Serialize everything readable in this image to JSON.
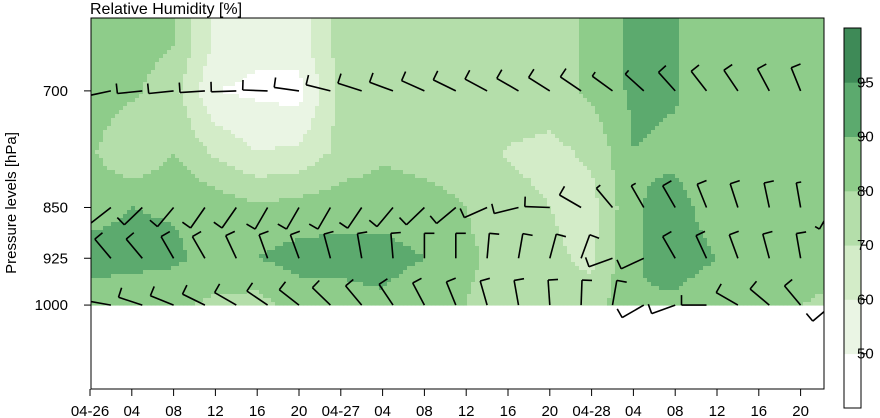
{
  "chart_data": {
    "type": "heatmap",
    "title": "Relative Humidity [%]",
    "xlabel": "",
    "ylabel": "Pressure levels [hPa]",
    "x_tick_labels": [
      "04-26",
      "04",
      "08",
      "12",
      "16",
      "20",
      "04-27",
      "04",
      "08",
      "12",
      "16",
      "20",
      "04-28",
      "04",
      "08",
      "12",
      "16",
      "20"
    ],
    "y_levels": [
      700,
      850,
      925,
      1000
    ],
    "y_tick_labels": [
      "700",
      "850",
      "925",
      "1000"
    ],
    "y_scale": "log",
    "ylim": [
      1150,
      620
    ],
    "colorbar": {
      "levels": [
        40,
        50,
        60,
        70,
        80,
        90,
        95,
        100
      ],
      "tick_labels": [
        "50",
        "60",
        "70",
        "80",
        "90",
        "95"
      ],
      "colors": [
        "#ffffff",
        "#eaf5e4",
        "#d3ecc8",
        "#b4deaa",
        "#8ecc8a",
        "#5caa6e",
        "#3e8a57"
      ]
    },
    "time_hours_from_first_tick": [
      0,
      4,
      8,
      12,
      16,
      20,
      24,
      28,
      32,
      36,
      40,
      44,
      48,
      52,
      56,
      60,
      64,
      68
    ],
    "rh_grid": {
      "levels": [
        650,
        700,
        775,
        850,
        925,
        1000
      ],
      "values": [
        [
          82,
          84,
          80,
          58,
          52,
          55,
          74,
          76,
          78,
          79,
          80,
          78,
          81,
          93,
          91,
          80,
          80,
          82,
          84
        ],
        [
          86,
          82,
          74,
          50,
          48,
          46,
          74,
          79,
          80,
          80,
          78,
          76,
          82,
          92,
          91,
          84,
          82,
          83,
          84
        ],
        [
          82,
          70,
          80,
          68,
          60,
          62,
          73,
          78,
          76,
          75,
          69,
          67,
          72,
          90,
          88,
          83,
          81,
          82,
          80
        ],
        [
          87,
          90,
          89,
          86,
          82,
          84,
          86,
          86,
          84,
          80,
          74,
          70,
          66,
          89,
          93,
          86,
          87,
          83,
          80
        ],
        [
          93,
          93,
          92,
          86,
          90,
          94,
          94,
          94,
          90,
          82,
          76,
          72,
          68,
          89,
          94,
          90,
          88,
          84,
          82
        ],
        [
          86,
          84,
          82,
          78,
          76,
          84,
          85,
          88,
          82,
          80,
          74,
          72,
          74,
          90,
          88,
          84,
          82,
          80,
          78
        ]
      ]
    },
    "wind_barbs": {
      "levels": [
        700,
        850,
        925,
        1000
      ],
      "time_hours": [
        0,
        2,
        5,
        8,
        11,
        14,
        17,
        20,
        23,
        26,
        29,
        32,
        35,
        38,
        41,
        44,
        47,
        50,
        53,
        56,
        59,
        62,
        65,
        68,
        71
      ],
      "directions_deg": [
        [
          265,
          258,
          264,
          264,
          266,
          268,
          272,
          278,
          284,
          288,
          290,
          294,
          296,
          298,
          300,
          302,
          304,
          306,
          312,
          318,
          322,
          326,
          332,
          338,
          342
        ],
        [
          250,
          232,
          226,
          220,
          215,
          215,
          210,
          210,
          210,
          214,
          220,
          226,
          230,
          246,
          256,
          272,
          300,
          320,
          330,
          330,
          338,
          342,
          348,
          350,
          210
        ],
        [
          320,
          320,
          320,
          330,
          330,
          335,
          340,
          340,
          345,
          350,
          355,
          0,
          0,
          5,
          10,
          15,
          20,
          250,
          245,
          330,
          335,
          340,
          345,
          350,
          355
        ],
        [
          270,
          280,
          288,
          292,
          296,
          300,
          304,
          308,
          314,
          320,
          326,
          332,
          338,
          344,
          350,
          356,
          2,
          10,
          240,
          250,
          270,
          300,
          310,
          320,
          230
        ]
      ],
      "speeds_kt": [
        [
          10,
          10,
          10,
          10,
          10,
          10,
          10,
          10,
          10,
          10,
          10,
          10,
          10,
          10,
          10,
          10,
          10,
          5,
          5,
          10,
          10,
          10,
          10,
          10,
          10
        ],
        [
          5,
          5,
          10,
          10,
          10,
          10,
          10,
          10,
          10,
          10,
          10,
          10,
          10,
          10,
          10,
          10,
          10,
          5,
          5,
          10,
          10,
          10,
          10,
          5,
          5
        ],
        [
          10,
          10,
          10,
          10,
          10,
          10,
          10,
          10,
          10,
          10,
          10,
          10,
          10,
          10,
          10,
          10,
          10,
          10,
          10,
          10,
          10,
          10,
          10,
          10,
          10
        ],
        [
          10,
          10,
          10,
          10,
          10,
          10,
          10,
          10,
          10,
          10,
          10,
          10,
          10,
          10,
          10,
          10,
          10,
          10,
          10,
          10,
          10,
          10,
          10,
          10,
          10
        ]
      ]
    }
  }
}
